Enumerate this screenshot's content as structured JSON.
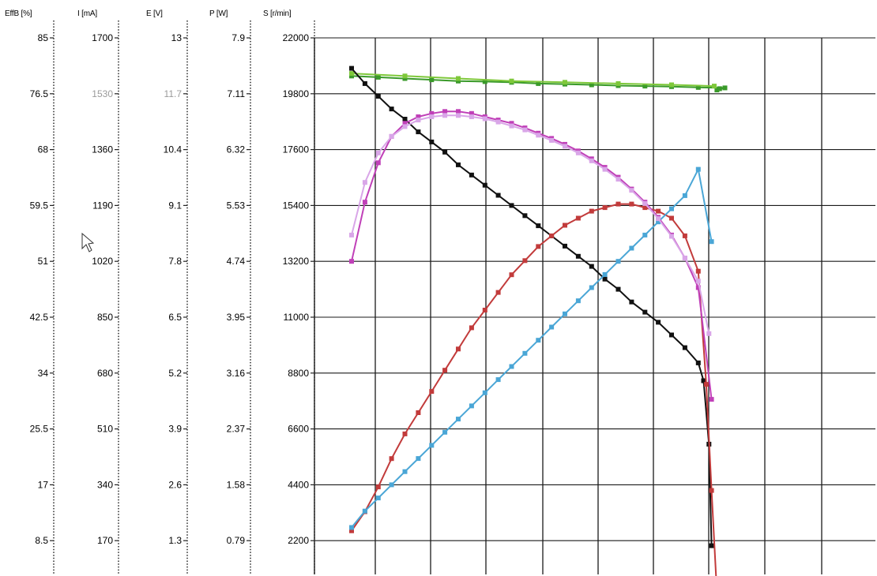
{
  "chart_data": {
    "type": "line",
    "axes": [
      {
        "label": "EffB [%]",
        "ticks": [
          "85",
          "76.5",
          "68",
          "59.5",
          "51",
          "42.5",
          "34",
          "25.5",
          "17",
          "8.5"
        ],
        "faded": false
      },
      {
        "label": "I [mA]",
        "ticks": [
          "1700",
          "1530",
          "1360",
          "1190",
          "1020",
          "850",
          "680",
          "510",
          "340",
          "170"
        ],
        "faded": true
      },
      {
        "label": "E [V]",
        "ticks": [
          "13",
          "11.7",
          "10.4",
          "9.1",
          "7.8",
          "6.5",
          "5.2",
          "3.9",
          "2.6",
          "1.3"
        ],
        "faded": true
      },
      {
        "label": "P [W]",
        "ticks": [
          "7.9",
          "7.11",
          "6.32",
          "5.53",
          "4.74",
          "3.95",
          "3.16",
          "2.37",
          "1.58",
          "0.79"
        ],
        "faded": false
      },
      {
        "label": "S [r/min]",
        "ticks": [
          "22000",
          "19800",
          "17600",
          "15400",
          "13200",
          "11000",
          "8800",
          "6600",
          "4400",
          "2200"
        ],
        "faded": false
      }
    ],
    "ylim": [
      0,
      22000
    ],
    "grid": true,
    "series": [
      {
        "color": "#3a9a2a",
        "unit": "S [r/min]",
        "x": [
          0,
          0.5,
          1,
          1.5,
          2,
          2.5,
          3,
          3.5,
          4,
          4.5,
          5,
          5.5,
          6,
          6.5,
          7,
          6.85,
          6.9
        ],
        "values": [
          20500,
          20450,
          20400,
          20350,
          20300,
          20280,
          20250,
          20200,
          20180,
          20150,
          20120,
          20100,
          20080,
          20050,
          20030,
          19950,
          20000
        ]
      },
      {
        "color": "#7ec83a",
        "unit": "S [r/min]",
        "x": [
          0,
          1,
          2,
          3,
          4,
          5,
          6,
          6.8
        ],
        "values": [
          20600,
          20500,
          20400,
          20300,
          20250,
          20200,
          20150,
          20100
        ]
      },
      {
        "color": "#111111",
        "unit": "S [r/min]",
        "x": [
          0,
          0.25,
          0.5,
          0.75,
          1,
          1.25,
          1.5,
          1.75,
          2,
          2.25,
          2.5,
          2.75,
          3,
          3.25,
          3.5,
          3.75,
          4,
          4.25,
          4.5,
          4.75,
          5,
          5.25,
          5.5,
          5.75,
          6,
          6.25,
          6.5,
          6.6,
          6.7,
          6.75
        ],
        "values": [
          20800,
          20200,
          19700,
          19200,
          18800,
          18300,
          17900,
          17500,
          17000,
          16600,
          16200,
          15800,
          15400,
          15000,
          14600,
          14200,
          13800,
          13400,
          13000,
          12500,
          12100,
          11600,
          11200,
          10800,
          10300,
          9800,
          9200,
          8500,
          6000,
          2000
        ]
      },
      {
        "color": "#c23b3b",
        "unit": "P [W]",
        "x": [
          0,
          0.25,
          0.5,
          0.75,
          1,
          1.25,
          1.5,
          1.75,
          2,
          2.25,
          2.5,
          2.75,
          3,
          3.25,
          3.5,
          3.75,
          4,
          4.25,
          4.5,
          4.75,
          5,
          5.25,
          5.5,
          5.75,
          6,
          6.25,
          6.5,
          6.65,
          6.75,
          6.85
        ],
        "values": [
          0.93,
          1.2,
          1.55,
          1.95,
          2.3,
          2.6,
          2.9,
          3.2,
          3.5,
          3.8,
          4.05,
          4.3,
          4.55,
          4.75,
          4.95,
          5.1,
          5.25,
          5.35,
          5.45,
          5.5,
          5.55,
          5.55,
          5.5,
          5.45,
          5.35,
          5.1,
          4.6,
          3.0,
          1.5,
          0.05
        ]
      },
      {
        "color": "#4aa6d6",
        "unit": "I [mA]",
        "x": [
          0,
          0.25,
          0.5,
          0.75,
          1,
          1.25,
          1.5,
          1.75,
          2,
          2.25,
          2.5,
          2.75,
          3,
          3.25,
          3.5,
          3.75,
          4,
          4.25,
          4.5,
          4.75,
          5,
          5.25,
          5.5,
          5.75,
          6,
          6.25,
          6.5,
          6.75
        ],
        "values": [
          210,
          260,
          300,
          340,
          380,
          420,
          460,
          500,
          540,
          580,
          620,
          660,
          700,
          740,
          780,
          820,
          860,
          900,
          940,
          980,
          1020,
          1060,
          1100,
          1140,
          1180,
          1220,
          1300,
          1080
        ]
      },
      {
        "color": "#c040b8",
        "unit": "EffB [%]",
        "x": [
          0,
          0.25,
          0.5,
          0.75,
          1,
          1.25,
          1.5,
          1.75,
          2,
          2.25,
          2.5,
          2.75,
          3,
          3.25,
          3.5,
          3.75,
          4,
          4.25,
          4.5,
          4.75,
          5,
          5.25,
          5.5,
          5.75,
          6,
          6.25,
          6.5,
          6.75
        ],
        "values": [
          51,
          60,
          66,
          70,
          72,
          73,
          73.5,
          73.8,
          73.8,
          73.5,
          73,
          72.5,
          72,
          71.3,
          70.5,
          69.7,
          68.8,
          67.8,
          66.6,
          65.3,
          63.8,
          62,
          60,
          57.7,
          55,
          51.5,
          47,
          30
        ]
      },
      {
        "color": "#d9a6e8",
        "unit": "EffB [%]",
        "x": [
          0,
          0.25,
          0.5,
          0.75,
          1,
          1.25,
          1.5,
          1.75,
          2,
          2.25,
          2.5,
          2.75,
          3,
          3.25,
          3.5,
          3.75,
          4,
          4.25,
          4.5,
          4.75,
          5,
          5.25,
          5.5,
          5.75,
          6,
          6.25,
          6.5,
          6.7
        ],
        "values": [
          55,
          63,
          67.5,
          70,
          71.5,
          72.5,
          73,
          73.2,
          73.2,
          73,
          72.7,
          72.2,
          71.6,
          71,
          70.2,
          69.4,
          68.5,
          67.5,
          66.3,
          65,
          63.5,
          61.8,
          59.8,
          57.5,
          54.8,
          51.5,
          48,
          40
        ]
      }
    ]
  }
}
